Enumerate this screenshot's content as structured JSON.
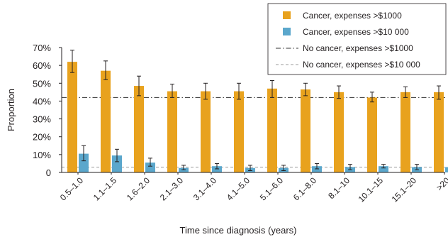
{
  "chart_data": {
    "type": "bar",
    "xlabel": "Time since diagnosis (years)",
    "ylabel": "Proportion",
    "ylim": [
      0,
      70
    ],
    "y_ticks": [
      0,
      10,
      20,
      30,
      40,
      50,
      60,
      70
    ],
    "y_tick_labels": [
      "0",
      "10%",
      "20%",
      "30%",
      "40%",
      "50%",
      "60%",
      "70%"
    ],
    "categories": [
      "0.5–1.0",
      "1.1–1.5",
      "1.6–2.0",
      "2.1–3.0",
      "3.1–4.0",
      "4.1–5.0",
      "5.1–6.0",
      "6.1–8.0",
      "8.1–10",
      "10.1–15",
      "15.1–20",
      ">20"
    ],
    "series": [
      {
        "name": "Cancer, expenses >$1000",
        "color": "#e8a21e",
        "values": [
          62,
          57,
          48.5,
          45.5,
          45.5,
          45.5,
          47,
          46.5,
          45,
          42,
          45,
          45
        ],
        "error_low": [
          56,
          52,
          43,
          42,
          41,
          41,
          42,
          43,
          41.5,
          39.5,
          42,
          41
        ],
        "error_high": [
          68.5,
          62.5,
          54,
          49.5,
          50,
          50,
          51.5,
          50,
          48.5,
          45,
          48,
          48.5
        ]
      },
      {
        "name": "Cancer, expenses >$10 000",
        "color": "#5ba7cc",
        "values": [
          10.5,
          9.5,
          5.5,
          2.5,
          3.5,
          2.5,
          2.5,
          3.5,
          3,
          3.5,
          3,
          3
        ],
        "error_low": [
          6.5,
          6,
          3.5,
          1.5,
          2,
          1,
          1,
          2,
          1.5,
          2.5,
          1.5,
          1.5
        ],
        "error_high": [
          15,
          13,
          8,
          4,
          5,
          4,
          4,
          5,
          4.5,
          4.5,
          4.5,
          5
        ]
      }
    ],
    "reference_lines": [
      {
        "name": "No cancer, expenses >$1000",
        "value": 42,
        "style": "dash-dot",
        "color": "#333333"
      },
      {
        "name": "No cancer, expenses >$10 000",
        "value": 3,
        "style": "dashed",
        "color": "#999999"
      }
    ],
    "legend_position": "top-right",
    "grid": false
  }
}
